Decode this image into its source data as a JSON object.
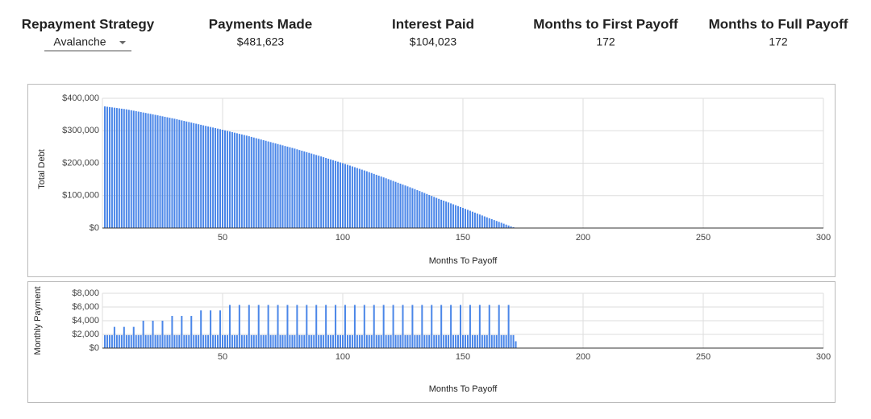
{
  "header": {
    "strategy": {
      "label": "Repayment Strategy",
      "value": "Avalanche"
    },
    "kpis": [
      {
        "label": "Payments Made",
        "value": "$481,623"
      },
      {
        "label": "Interest Paid",
        "value": "$104,023"
      },
      {
        "label": "Months to First Payoff",
        "value": "172"
      },
      {
        "label": "Months to Full Payoff",
        "value": "172"
      }
    ]
  },
  "chart_data": [
    {
      "type": "bar",
      "y_label": "Total Debt",
      "x_label": "Months To Payoff",
      "color": "#4a86e8",
      "grid": true,
      "xlim": [
        0,
        300
      ],
      "xticks": [
        50,
        100,
        150,
        200,
        250,
        300
      ],
      "ylim": [
        0,
        400000
      ],
      "yticks": [
        {
          "value": 0,
          "label": "$0"
        },
        {
          "value": 100000,
          "label": "$100,000"
        },
        {
          "value": 200000,
          "label": "$200,000"
        },
        {
          "value": 300000,
          "label": "$300,000"
        },
        {
          "value": 400000,
          "label": "$400,000"
        }
      ],
      "x": [
        1,
        2,
        3,
        4,
        5,
        6,
        7,
        8,
        9,
        10,
        11,
        12,
        13,
        14,
        15,
        16,
        17,
        18,
        19,
        20,
        21,
        22,
        23,
        24,
        25,
        26,
        27,
        28,
        29,
        30,
        31,
        32,
        33,
        34,
        35,
        36,
        37,
        38,
        39,
        40,
        41,
        42,
        43,
        44,
        45,
        46,
        47,
        48,
        49,
        50,
        51,
        52,
        53,
        54,
        55,
        56,
        57,
        58,
        59,
        60,
        61,
        62,
        63,
        64,
        65,
        66,
        67,
        68,
        69,
        70,
        71,
        72,
        73,
        74,
        75,
        76,
        77,
        78,
        79,
        80,
        81,
        82,
        83,
        84,
        85,
        86,
        87,
        88,
        89,
        90,
        91,
        92,
        93,
        94,
        95,
        96,
        97,
        98,
        99,
        100,
        101,
        102,
        103,
        104,
        105,
        106,
        107,
        108,
        109,
        110,
        111,
        112,
        113,
        114,
        115,
        116,
        117,
        118,
        119,
        120,
        121,
        122,
        123,
        124,
        125,
        126,
        127,
        128,
        129,
        130,
        131,
        132,
        133,
        134,
        135,
        136,
        137,
        138,
        139,
        140,
        141,
        142,
        143,
        144,
        145,
        146,
        147,
        148,
        149,
        150,
        151,
        152,
        153,
        154,
        155,
        156,
        157,
        158,
        159,
        160,
        161,
        162,
        163,
        164,
        165,
        166,
        167,
        168,
        169,
        170,
        171,
        172
      ],
      "values": [
        375000,
        374000,
        373000,
        372000,
        371000,
        370000,
        369000,
        368000,
        367000,
        366000,
        364600,
        363200,
        361800,
        360400,
        359000,
        357600,
        356200,
        354800,
        353400,
        352000,
        350500,
        349000,
        347500,
        346000,
        344500,
        343000,
        341500,
        340000,
        338500,
        337000,
        335300,
        333600,
        331900,
        330200,
        328500,
        326800,
        325100,
        323400,
        321700,
        320000,
        318300,
        316600,
        314900,
        313200,
        311500,
        309800,
        308100,
        306400,
        304700,
        303000,
        301200,
        299400,
        297600,
        295800,
        294000,
        292200,
        290400,
        288600,
        286800,
        285000,
        283000,
        281000,
        279000,
        277000,
        275000,
        273000,
        271000,
        269000,
        267000,
        265000,
        263000,
        261000,
        259000,
        257000,
        255000,
        253000,
        251000,
        249000,
        247000,
        245000,
        242800,
        240600,
        238400,
        236200,
        234000,
        231800,
        229600,
        227400,
        225200,
        223000,
        220700,
        218400,
        216100,
        213800,
        211500,
        209200,
        206900,
        204600,
        202300,
        200000,
        197500,
        195000,
        192500,
        190000,
        187500,
        185000,
        182500,
        180000,
        177500,
        175000,
        172300,
        169600,
        166900,
        164200,
        161500,
        158800,
        156100,
        153400,
        150700,
        148000,
        145200,
        142400,
        139600,
        136800,
        134000,
        131200,
        128400,
        125600,
        122800,
        120000,
        117000,
        114000,
        111000,
        108000,
        105000,
        102000,
        99000,
        96000,
        93000,
        90000,
        87200,
        84400,
        81600,
        78800,
        76000,
        73200,
        70400,
        67600,
        64800,
        62000,
        59100,
        56200,
        53300,
        50400,
        47500,
        44600,
        41700,
        38800,
        35900,
        33000,
        30200,
        27400,
        24600,
        21800,
        19000,
        16200,
        13400,
        10600,
        7800,
        5000,
        2500,
        500
      ]
    },
    {
      "type": "bar",
      "y_label": "Monthly Payment",
      "x_label": "Months To Payoff",
      "color": "#4a86e8",
      "grid": true,
      "xlim": [
        0,
        300
      ],
      "xticks": [
        50,
        100,
        150,
        200,
        250,
        300
      ],
      "ylim": [
        0,
        8000
      ],
      "yticks": [
        {
          "value": 0,
          "label": "$0"
        },
        {
          "value": 2000,
          "label": "$2,000"
        },
        {
          "value": 4000,
          "label": "$4,000"
        },
        {
          "value": 6000,
          "label": "$6,000"
        },
        {
          "value": 8000,
          "label": "$8,000"
        }
      ],
      "x": [
        1,
        2,
        3,
        4,
        5,
        6,
        7,
        8,
        9,
        10,
        11,
        12,
        13,
        14,
        15,
        16,
        17,
        18,
        19,
        20,
        21,
        22,
        23,
        24,
        25,
        26,
        27,
        28,
        29,
        30,
        31,
        32,
        33,
        34,
        35,
        36,
        37,
        38,
        39,
        40,
        41,
        42,
        43,
        44,
        45,
        46,
        47,
        48,
        49,
        50,
        51,
        52,
        53,
        54,
        55,
        56,
        57,
        58,
        59,
        60,
        61,
        62,
        63,
        64,
        65,
        66,
        67,
        68,
        69,
        70,
        71,
        72,
        73,
        74,
        75,
        76,
        77,
        78,
        79,
        80,
        81,
        82,
        83,
        84,
        85,
        86,
        87,
        88,
        89,
        90,
        91,
        92,
        93,
        94,
        95,
        96,
        97,
        98,
        99,
        100,
        101,
        102,
        103,
        104,
        105,
        106,
        107,
        108,
        109,
        110,
        111,
        112,
        113,
        114,
        115,
        116,
        117,
        118,
        119,
        120,
        121,
        122,
        123,
        124,
        125,
        126,
        127,
        128,
        129,
        130,
        131,
        132,
        133,
        134,
        135,
        136,
        137,
        138,
        139,
        140,
        141,
        142,
        143,
        144,
        145,
        146,
        147,
        148,
        149,
        150,
        151,
        152,
        153,
        154,
        155,
        156,
        157,
        158,
        159,
        160,
        161,
        162,
        163,
        164,
        165,
        166,
        167,
        168,
        169,
        170,
        171,
        172
      ],
      "values": [
        1900,
        1900,
        1900,
        1900,
        3100,
        1900,
        1900,
        1900,
        3100,
        1900,
        1900,
        1900,
        3100,
        1900,
        1900,
        1900,
        4000,
        1900,
        1900,
        1900,
        4000,
        1900,
        1900,
        1900,
        4000,
        1900,
        1900,
        1900,
        4700,
        1900,
        1900,
        1900,
        4700,
        1900,
        1900,
        1900,
        4700,
        1900,
        1900,
        1900,
        5500,
        1900,
        1900,
        1900,
        5500,
        1900,
        1900,
        1900,
        5500,
        1900,
        1900,
        1900,
        6300,
        1900,
        1900,
        1900,
        6300,
        1900,
        1900,
        1900,
        6300,
        1900,
        1900,
        1900,
        6300,
        1900,
        1900,
        1900,
        6300,
        1900,
        1900,
        1900,
        6300,
        1900,
        1900,
        1900,
        6300,
        1900,
        1900,
        1900,
        6300,
        1900,
        1900,
        1900,
        6300,
        1900,
        1900,
        1900,
        6300,
        1900,
        1900,
        1900,
        6300,
        1900,
        1900,
        1900,
        6300,
        1900,
        1900,
        1900,
        6300,
        1900,
        1900,
        1900,
        6300,
        1900,
        1900,
        1900,
        6300,
        1900,
        1900,
        1900,
        6300,
        1900,
        1900,
        1900,
        6300,
        1900,
        1900,
        1900,
        6300,
        1900,
        1900,
        1900,
        6300,
        1900,
        1900,
        1900,
        6300,
        1900,
        1900,
        1900,
        6300,
        1900,
        1900,
        1900,
        6300,
        1900,
        1900,
        1900,
        6300,
        1900,
        1900,
        1900,
        6300,
        1900,
        1900,
        1900,
        6300,
        1900,
        1900,
        1900,
        6300,
        1900,
        1900,
        1900,
        6300,
        1900,
        1900,
        1900,
        6300,
        1900,
        1900,
        1900,
        6300,
        1900,
        1900,
        1900,
        6300,
        1900,
        1900,
        1000
      ]
    }
  ]
}
